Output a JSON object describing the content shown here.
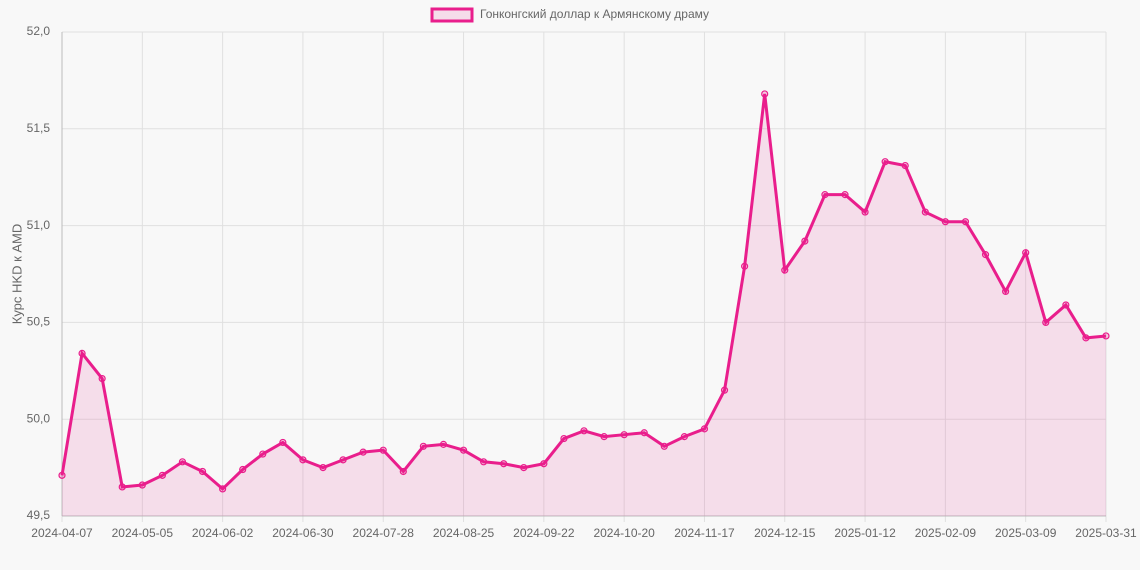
{
  "chart_data": {
    "type": "line",
    "legend": "top",
    "y_label": "Курс HKD к AMD",
    "categories": [
      "2024-04-07",
      null,
      null,
      null,
      "2024-05-05",
      null,
      null,
      null,
      "2024-06-02",
      null,
      null,
      null,
      "2024-06-30",
      null,
      null,
      null,
      "2024-07-28",
      null,
      null,
      null,
      "2024-08-25",
      null,
      null,
      null,
      "2024-09-22",
      null,
      null,
      null,
      "2024-10-20",
      null,
      null,
      null,
      "2024-11-17",
      null,
      null,
      null,
      "2024-12-15",
      null,
      null,
      null,
      "2025-01-12",
      null,
      null,
      null,
      "2025-02-09",
      null,
      null,
      null,
      "2025-03-09",
      null,
      null,
      null,
      "2025-03-31"
    ],
    "series": [
      {
        "name": "Гонконгский доллар к Армянскому драму",
        "color": "#e91e8c",
        "fill": "rgba(233,30,140,0.12)",
        "values": [
          49.71,
          50.34,
          50.21,
          49.65,
          49.66,
          49.71,
          49.78,
          49.73,
          49.64,
          49.74,
          49.82,
          49.88,
          49.79,
          49.75,
          49.79,
          49.83,
          49.84,
          49.73,
          49.86,
          49.87,
          49.84,
          49.78,
          49.77,
          49.75,
          49.77,
          49.9,
          49.94,
          49.91,
          49.92,
          49.93,
          49.86,
          49.91,
          49.95,
          50.15,
          50.79,
          51.68,
          50.77,
          50.92,
          51.16,
          51.16,
          51.07,
          51.33,
          51.31,
          51.07,
          51.02,
          51.02,
          50.85,
          50.66,
          50.86,
          50.5,
          50.59,
          50.42,
          50.43
        ]
      }
    ],
    "ylim": [
      49.5,
      52.0
    ],
    "yticks": [
      {
        "value": 49.5,
        "label": "49,5"
      },
      {
        "value": 50.0,
        "label": "50,0"
      },
      {
        "value": 50.5,
        "label": "50,5"
      },
      {
        "value": 51.0,
        "label": "51,0"
      },
      {
        "value": 51.5,
        "label": "51,5"
      },
      {
        "value": 52.0,
        "label": "52,0"
      }
    ],
    "grid": true
  }
}
